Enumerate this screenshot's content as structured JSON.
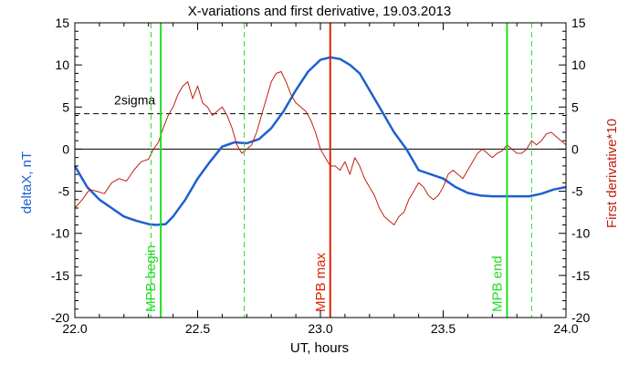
{
  "chart_data": {
    "type": "line",
    "title": "X-variations and first derivative, 19.03.2013",
    "xlabel": "UT, hours",
    "ylabel_left": "deltaX, nT",
    "ylabel_right": "First derivative*10",
    "xlim": [
      22.0,
      24.0
    ],
    "ylim": [
      -20,
      15
    ],
    "x_ticks": [
      "22.0",
      "22.5",
      "23.0",
      "23.5",
      "24.0"
    ],
    "y_ticks": [
      "-20",
      "-15",
      "-10",
      "-5",
      "0",
      "5",
      "10",
      "15"
    ],
    "grid": false,
    "series": [
      {
        "color": "#1e5fd0",
        "x": [
          22.0,
          22.05,
          22.1,
          22.15,
          22.2,
          22.25,
          22.3,
          22.33,
          22.37,
          22.4,
          22.45,
          22.5,
          22.55,
          22.6,
          22.65,
          22.7,
          22.75,
          22.8,
          22.85,
          22.9,
          22.95,
          23.0,
          23.04,
          23.08,
          23.12,
          23.16,
          23.2,
          23.25,
          23.3,
          23.35,
          23.4,
          23.45,
          23.5,
          23.55,
          23.6,
          23.65,
          23.7,
          23.75,
          23.8,
          23.85,
          23.9,
          23.95,
          24.0
        ],
        "values": [
          -2.0,
          -4.5,
          -6.0,
          -7.0,
          -8.0,
          -8.5,
          -8.9,
          -9.0,
          -8.9,
          -8.0,
          -6.0,
          -3.5,
          -1.5,
          0.3,
          0.8,
          0.7,
          1.2,
          2.5,
          4.5,
          7.0,
          9.2,
          10.6,
          10.9,
          10.7,
          10.0,
          9.0,
          7.0,
          4.5,
          2.0,
          0.0,
          -2.5,
          -3.0,
          -3.5,
          -4.5,
          -5.2,
          -5.5,
          -5.6,
          -5.6,
          -5.6,
          -5.6,
          -5.3,
          -4.8,
          -4.5
        ]
      },
      {
        "color": "#c02010",
        "x": [
          22.0,
          22.03,
          22.06,
          22.09,
          22.12,
          22.15,
          22.18,
          22.21,
          22.24,
          22.27,
          22.3,
          22.32,
          22.34,
          22.36,
          22.38,
          22.4,
          22.42,
          22.44,
          22.46,
          22.48,
          22.5,
          22.52,
          22.54,
          22.56,
          22.58,
          22.6,
          22.62,
          22.64,
          22.66,
          22.68,
          22.7,
          22.72,
          22.74,
          22.76,
          22.78,
          22.8,
          22.82,
          22.84,
          22.86,
          22.88,
          22.9,
          22.92,
          22.94,
          22.96,
          22.98,
          23.0,
          23.02,
          23.04,
          23.06,
          23.08,
          23.1,
          23.12,
          23.14,
          23.16,
          23.18,
          23.2,
          23.22,
          23.24,
          23.26,
          23.28,
          23.3,
          23.32,
          23.34,
          23.36,
          23.38,
          23.4,
          23.42,
          23.44,
          23.46,
          23.48,
          23.5,
          23.52,
          23.54,
          23.56,
          23.58,
          23.6,
          23.62,
          23.64,
          23.66,
          23.68,
          23.7,
          23.72,
          23.74,
          23.76,
          23.78,
          23.8,
          23.82,
          23.84,
          23.86,
          23.88,
          23.9,
          23.92,
          23.94,
          23.96,
          23.98,
          24.0
        ],
        "values": [
          -7.0,
          -6.0,
          -4.8,
          -5.0,
          -5.3,
          -4.0,
          -3.5,
          -3.8,
          -2.5,
          -1.5,
          -1.2,
          0.0,
          0.8,
          2.5,
          4.0,
          5.0,
          6.5,
          7.5,
          8.0,
          6.0,
          7.5,
          5.5,
          5.0,
          4.0,
          4.5,
          5.0,
          4.0,
          2.5,
          0.5,
          -0.5,
          0.0,
          0.5,
          2.0,
          4.0,
          6.0,
          8.0,
          9.0,
          9.2,
          8.0,
          6.5,
          5.5,
          5.0,
          4.5,
          3.5,
          2.0,
          0.0,
          -1.0,
          -2.0,
          -2.0,
          -2.5,
          -1.5,
          -3.0,
          -1.0,
          -2.0,
          -3.5,
          -4.5,
          -5.5,
          -7.0,
          -8.0,
          -8.5,
          -9.0,
          -8.0,
          -7.5,
          -6.0,
          -5.0,
          -4.0,
          -4.5,
          -5.5,
          -6.0,
          -5.5,
          -4.5,
          -3.0,
          -2.5,
          -3.0,
          -3.5,
          -2.5,
          -1.5,
          -0.5,
          0.0,
          -0.5,
          -1.0,
          -0.5,
          -0.2,
          0.5,
          0.0,
          -0.5,
          -0.5,
          0.0,
          1.0,
          0.5,
          1.0,
          1.8,
          2.0,
          1.5,
          1.0,
          0.5
        ]
      }
    ],
    "reference_lines": [
      {
        "kind": "horizontal",
        "y": 0,
        "style": "solid",
        "color": "#000000"
      },
      {
        "kind": "horizontal",
        "y": 4.2,
        "style": "dashed",
        "color": "#000000",
        "label": "2sigma"
      }
    ],
    "markers": [
      {
        "x": 22.35,
        "style": "solid",
        "color": "#22dd22",
        "label": "MPB begin"
      },
      {
        "x": 22.31,
        "style": "dashed",
        "color": "#22dd22",
        "label": ""
      },
      {
        "x": 22.69,
        "style": "dashed",
        "color": "#22dd22",
        "label": ""
      },
      {
        "x": 23.04,
        "style": "solid",
        "color": "#dd2200",
        "label": "MPB max"
      },
      {
        "x": 23.76,
        "style": "solid",
        "color": "#22dd22",
        "label": "MPB end"
      },
      {
        "x": 23.86,
        "style": "dashed",
        "color": "#22dd22",
        "label": ""
      }
    ],
    "colors": {
      "left_axis_label": "#1e5fd0",
      "right_axis_label": "#c02010",
      "axes": "#000000"
    }
  }
}
